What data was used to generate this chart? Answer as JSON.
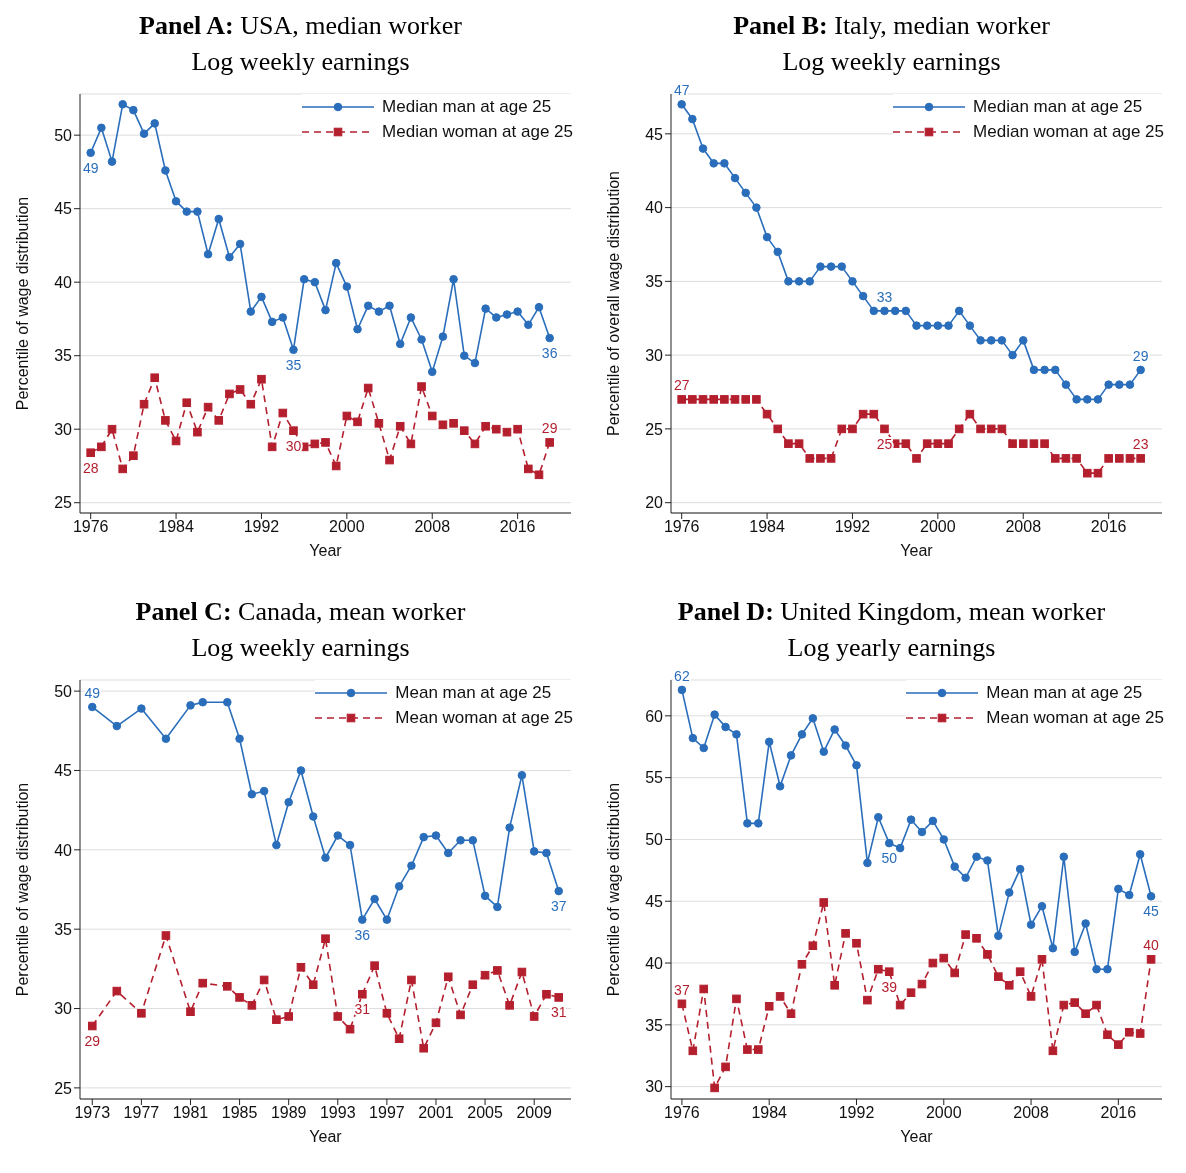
{
  "chart_data": [
    {
      "type": "line",
      "title": "Panel A: USA, median worker",
      "subtitle": "Log weekly earnings",
      "xlabel": "Year",
      "ylabel": "Percentile of wage distribution",
      "x": [
        1976,
        1977,
        1978,
        1979,
        1980,
        1981,
        1982,
        1983,
        1984,
        1985,
        1986,
        1987,
        1988,
        1989,
        1990,
        1991,
        1992,
        1993,
        1994,
        1995,
        1996,
        1997,
        1998,
        1999,
        2000,
        2001,
        2002,
        2003,
        2004,
        2005,
        2006,
        2007,
        2008,
        2009,
        2010,
        2011,
        2012,
        2013,
        2014,
        2015,
        2016,
        2017,
        2018,
        2019
      ],
      "series": [
        {
          "name": "Median man at age 25",
          "color": "#2a6ebb",
          "marker": "circle",
          "line_style": "solid",
          "values": [
            48.8,
            50.5,
            48.2,
            52.1,
            51.7,
            50.1,
            50.8,
            47.6,
            45.5,
            44.8,
            44.8,
            41.9,
            44.3,
            41.7,
            42.6,
            38.0,
            39.0,
            37.3,
            37.6,
            35.4,
            40.2,
            40.0,
            38.1,
            41.3,
            39.7,
            36.8,
            38.4,
            38.0,
            38.4,
            35.8,
            37.6,
            36.1,
            33.9,
            36.3,
            40.2,
            35.0,
            34.5,
            38.2,
            37.6,
            37.8,
            38.0,
            37.1,
            38.3,
            36.2
          ]
        },
        {
          "name": "Median woman at age 25",
          "color": "#b41f2e",
          "marker": "square",
          "line_style": "dashed",
          "values": [
            28.4,
            28.8,
            30.0,
            27.3,
            28.2,
            31.7,
            33.5,
            30.6,
            29.2,
            31.8,
            29.8,
            31.5,
            30.6,
            32.4,
            32.7,
            31.7,
            33.4,
            28.8,
            31.1,
            29.9,
            28.8,
            29.0,
            29.1,
            27.5,
            30.9,
            30.5,
            32.8,
            30.4,
            27.9,
            30.2,
            29.0,
            32.9,
            30.9,
            30.3,
            30.4,
            29.9,
            29.0,
            30.2,
            30.0,
            29.8,
            30.0,
            27.3,
            26.9,
            29.1
          ]
        }
      ],
      "annotations": [
        {
          "text": "49",
          "x": 1976,
          "y": 48.8
        },
        {
          "text": "35",
          "x": 1995,
          "y": 35.4
        },
        {
          "text": "36",
          "x": 2019,
          "y": 36.2
        },
        {
          "text": "28",
          "x": 1976,
          "y": 28.4
        },
        {
          "text": "30",
          "x": 1995,
          "y": 29.9
        },
        {
          "text": "29",
          "x": 2019,
          "y": 29.1
        }
      ],
      "xlim": [
        1975,
        2021
      ],
      "xticks": [
        1976,
        1984,
        1992,
        2000,
        2008,
        2016
      ],
      "ylim": [
        24.3,
        52.8
      ],
      "yticks": [
        25,
        30,
        35,
        40,
        45,
        50
      ],
      "grid": "y",
      "legend": "top right"
    },
    {
      "type": "line",
      "title": "Panel B: Italy, median worker",
      "subtitle": "Log weekly earnings",
      "xlabel": "Year",
      "ylabel": "Percentile of overall wage distribution",
      "x": [
        1976,
        1977,
        1978,
        1979,
        1980,
        1981,
        1982,
        1983,
        1984,
        1985,
        1986,
        1987,
        1988,
        1989,
        1990,
        1991,
        1992,
        1993,
        1994,
        1995,
        1996,
        1997,
        1998,
        1999,
        2000,
        2001,
        2002,
        2003,
        2004,
        2005,
        2006,
        2007,
        2008,
        2009,
        2010,
        2011,
        2012,
        2013,
        2014,
        2015,
        2016,
        2017,
        2018,
        2019
      ],
      "series": [
        {
          "name": "Median man at age 25",
          "color": "#2a6ebb",
          "marker": "circle",
          "line_style": "solid",
          "values": [
            47,
            46,
            44,
            43,
            43,
            42,
            41,
            40,
            38,
            37,
            35,
            35,
            35,
            36,
            36,
            36,
            35,
            34,
            33,
            33,
            33,
            33,
            32,
            32,
            32,
            32,
            33,
            32,
            31,
            31,
            31,
            30,
            31,
            29,
            29,
            29,
            28,
            27,
            27,
            27,
            28,
            28,
            28,
            29
          ]
        },
        {
          "name": "Median woman at age 25",
          "color": "#b41f2e",
          "marker": "square",
          "line_style": "dashed",
          "values": [
            27,
            27,
            27,
            27,
            27,
            27,
            27,
            27,
            26,
            25,
            24,
            24,
            23,
            23,
            23,
            25,
            25,
            26,
            26,
            25,
            24,
            24,
            23,
            24,
            24,
            24,
            25,
            26,
            25,
            25,
            25,
            24,
            24,
            24,
            24,
            23,
            23,
            23,
            22,
            22,
            23,
            23,
            23,
            23
          ]
        }
      ],
      "annotations": [
        {
          "text": "47",
          "x": 1976,
          "y": 47
        },
        {
          "text": "33",
          "x": 1995,
          "y": 33
        },
        {
          "text": "29",
          "x": 2019,
          "y": 29
        },
        {
          "text": "27",
          "x": 1976,
          "y": 27
        },
        {
          "text": "25",
          "x": 1995,
          "y": 25
        },
        {
          "text": "23",
          "x": 2019,
          "y": 23
        }
      ],
      "xlim": [
        1975,
        2021
      ],
      "xticks": [
        1976,
        1984,
        1992,
        2000,
        2008,
        2016
      ],
      "ylim": [
        19.3,
        47.7
      ],
      "yticks": [
        20,
        25,
        30,
        35,
        40,
        45
      ],
      "grid": "y",
      "legend": "top right"
    },
    {
      "type": "line",
      "title": "Panel C: Canada, mean worker",
      "subtitle": "Log weekly earnings",
      "xlabel": "Year",
      "ylabel": "Percentile of wage distribution",
      "x": [
        1973,
        1975,
        1977,
        1979,
        1981,
        1982,
        1984,
        1985,
        1986,
        1987,
        1988,
        1989,
        1990,
        1991,
        1992,
        1993,
        1994,
        1995,
        1996,
        1997,
        1998,
        1999,
        2000,
        2001,
        2002,
        2003,
        2004,
        2005,
        2006,
        2007,
        2008,
        2009,
        2010,
        2011
      ],
      "series": [
        {
          "name": "Mean man at age 25",
          "color": "#2a6ebb",
          "marker": "circle",
          "line_style": "solid",
          "values": [
            49.0,
            47.8,
            48.9,
            47.0,
            49.1,
            49.3,
            49.3,
            47.0,
            43.5,
            43.7,
            40.3,
            43.0,
            45.0,
            42.1,
            39.5,
            40.9,
            40.3,
            35.6,
            36.9,
            35.6,
            37.7,
            39.0,
            40.8,
            40.9,
            39.8,
            40.6,
            40.6,
            37.1,
            36.4,
            41.4,
            44.7,
            39.9,
            39.8,
            37.4
          ]
        },
        {
          "name": "Mean woman at age 25",
          "color": "#b41f2e",
          "marker": "square",
          "line_style": "dashed",
          "values": [
            28.9,
            31.1,
            29.7,
            34.6,
            29.8,
            31.6,
            31.4,
            30.7,
            30.2,
            31.8,
            29.3,
            29.5,
            32.6,
            31.5,
            34.4,
            29.5,
            28.7,
            30.9,
            32.7,
            29.7,
            28.1,
            31.8,
            27.5,
            29.1,
            32.0,
            29.6,
            31.5,
            32.1,
            32.4,
            30.2,
            32.3,
            29.5,
            30.9,
            30.7
          ]
        }
      ],
      "annotations": [
        {
          "text": "49",
          "x": 1973,
          "y": 49.0
        },
        {
          "text": "36",
          "x": 1995,
          "y": 35.6
        },
        {
          "text": "37",
          "x": 2011,
          "y": 37.4
        },
        {
          "text": "29",
          "x": 1973,
          "y": 28.9
        },
        {
          "text": "31",
          "x": 1995,
          "y": 30.9
        },
        {
          "text": "31",
          "x": 2011,
          "y": 30.7
        }
      ],
      "xlim": [
        1972,
        2012
      ],
      "xticks": [
        1973,
        1977,
        1981,
        1985,
        1989,
        1993,
        1997,
        2001,
        2005,
        2009
      ],
      "ylim": [
        24.3,
        50.7
      ],
      "yticks": [
        25,
        30,
        35,
        40,
        45,
        50
      ],
      "grid": "y",
      "legend": "top right"
    },
    {
      "type": "line",
      "title": "Panel D: United Kingdom, mean worker",
      "subtitle": "Log yearly earnings",
      "xlabel": "Year",
      "ylabel": "Percentile of wage distribution",
      "x": [
        1976,
        1977,
        1978,
        1979,
        1980,
        1981,
        1982,
        1983,
        1984,
        1985,
        1986,
        1987,
        1988,
        1989,
        1990,
        1991,
        1992,
        1993,
        1994,
        1995,
        1996,
        1997,
        1998,
        1999,
        2000,
        2001,
        2002,
        2003,
        2004,
        2005,
        2006,
        2007,
        2008,
        2009,
        2010,
        2011,
        2012,
        2013,
        2014,
        2015,
        2016,
        2017,
        2018,
        2019
      ],
      "series": [
        {
          "name": "Mean man at age 25",
          "color": "#2a6ebb",
          "marker": "circle",
          "line_style": "solid",
          "values": [
            62.1,
            58.2,
            57.4,
            60.1,
            59.1,
            58.5,
            51.3,
            51.3,
            57.9,
            54.3,
            56.8,
            58.5,
            59.8,
            57.1,
            58.9,
            57.6,
            56.0,
            48.1,
            51.8,
            49.7,
            49.3,
            51.6,
            50.6,
            51.5,
            50.0,
            47.8,
            46.9,
            48.6,
            48.3,
            42.2,
            45.7,
            47.6,
            43.1,
            44.6,
            41.2,
            48.6,
            40.9,
            43.2,
            39.5,
            39.5,
            46.0,
            45.5,
            48.8,
            45.4
          ]
        },
        {
          "name": "Mean woman at age 25",
          "color": "#b41f2e",
          "marker": "square",
          "line_style": "dashed",
          "values": [
            36.7,
            32.9,
            37.9,
            29.9,
            31.6,
            37.1,
            33.0,
            33.0,
            36.5,
            37.3,
            35.9,
            39.9,
            41.4,
            44.9,
            38.2,
            42.4,
            41.6,
            37.0,
            39.5,
            39.3,
            36.6,
            37.6,
            38.3,
            40.0,
            40.4,
            39.2,
            42.3,
            42.0,
            40.7,
            38.9,
            38.2,
            39.3,
            37.3,
            40.3,
            32.9,
            36.6,
            36.8,
            35.9,
            36.6,
            34.2,
            33.4,
            34.4,
            34.3,
            40.3
          ]
        }
      ],
      "annotations": [
        {
          "text": "62",
          "x": 1976,
          "y": 62.1
        },
        {
          "text": "50",
          "x": 1995,
          "y": 49.7
        },
        {
          "text": "45",
          "x": 2019,
          "y": 45.4
        },
        {
          "text": "37",
          "x": 1976,
          "y": 36.7
        },
        {
          "text": "39",
          "x": 1995,
          "y": 39.3
        },
        {
          "text": "40",
          "x": 2019,
          "y": 40.3
        }
      ],
      "xlim": [
        1975,
        2020
      ],
      "xticks": [
        1976,
        1984,
        1992,
        2000,
        2008,
        2016
      ],
      "ylim": [
        29,
        62.9
      ],
      "yticks": [
        30,
        35,
        40,
        45,
        50,
        55,
        60
      ],
      "grid": "y",
      "legend": "top right"
    }
  ]
}
